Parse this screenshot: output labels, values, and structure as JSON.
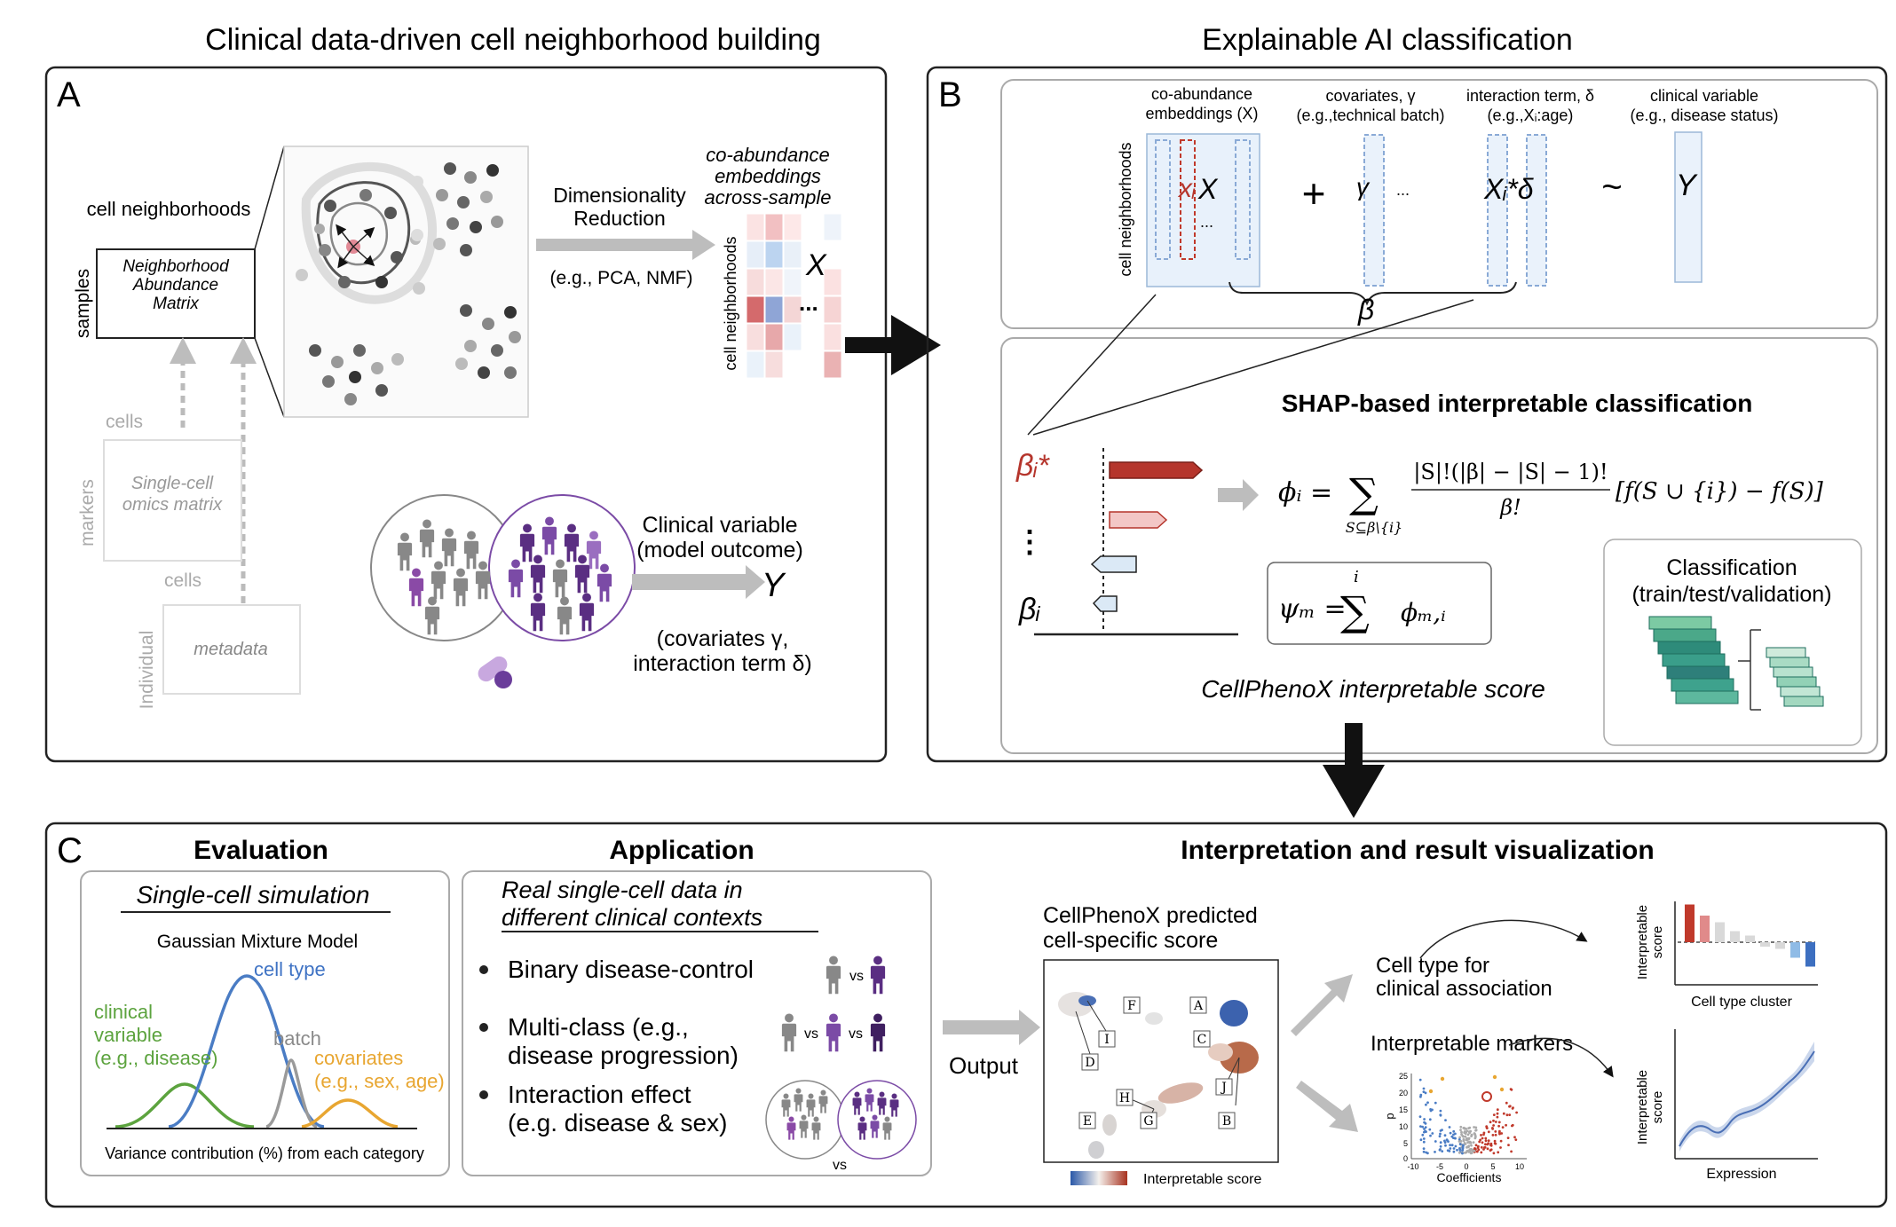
{
  "colors": {
    "panel_border": "#222222",
    "subpanel_border": "#9a9a9a",
    "arrow_gray": "#bdbdbd",
    "red": "#b5352c",
    "pink": "#e8a7a3",
    "blue_light": "#cfe3f5",
    "blue": "#4a7cc4",
    "purple": "#6a3d9a",
    "green": "#5ca33e",
    "orange": "#e8a631",
    "gray_curve": "#9a9a9a"
  },
  "titles": {
    "left": "Clinical data-driven cell neighborhood building",
    "right": "Explainable AI classification"
  },
  "panel_a": {
    "letter": "A",
    "cell_neighborhoods": "cell neighborhoods",
    "samples": "samples",
    "matrix": [
      "Neighborhood",
      "Abundance",
      "Matrix"
    ],
    "dim_red": [
      "Dimensionality",
      "Reduction"
    ],
    "eg": "(e.g., PCA, NMF)",
    "embeddings": [
      "co-abundance",
      "embeddings",
      "across-sample"
    ],
    "cell_neighborhoods_vert": "cell neighborhoods",
    "x_label": "X",
    "dots": "...",
    "cells_top": "cells",
    "markers": "markers",
    "single_cell": [
      "Single-cell",
      "omics matrix"
    ],
    "cells_bottom": "cells",
    "individual": "Individual",
    "metadata": "metadata",
    "clinical_var": [
      "Clinical variable",
      "(model outcome)"
    ],
    "y_label": "Y",
    "covariates": [
      "(covariates γ,",
      "interaction term δ)"
    ]
  },
  "panel_b": {
    "letter": "B",
    "headers": {
      "coab": [
        "co-abundance",
        "embeddings (X)"
      ],
      "cov": [
        "covariates, γ",
        "(e.g.,technical batch)"
      ],
      "inter": [
        "interaction term, δ",
        "(e.g.,Xᵢ:age)"
      ],
      "clin": [
        "clinical variable",
        "(e.g., disease status)"
      ]
    },
    "cell_neighborhoods": "cell neighborhoods",
    "xi": "xᵢ",
    "x": "X",
    "dots": "...",
    "plus": "+",
    "gamma": "γ",
    "gamma_dots": "...",
    "xi_delta": "Xᵢ*δ",
    "tilde": "~",
    "y": "Y",
    "beta": "β",
    "shap_title": "SHAP-based interpretable classification",
    "beta_star": "βᵢ*",
    "beta_i": "βᵢ",
    "vdots": "⋮",
    "phi_lhs": "ϕᵢ =",
    "sum": "∑",
    "sum_sub": "S⊆β\\{i}",
    "frac_num": "|S|!(|β| − |S| − 1)!",
    "frac_den": "β!",
    "bracket": "[f(S ∪ {i}) − f(S)]",
    "psi_lhs": "ψₘ =",
    "psi_sup": "i",
    "psi_rhs": "ϕₘ,ᵢ",
    "classification": [
      "Classification",
      "(train/test/validation)"
    ],
    "score_label": "CellPhenoX interpretable score"
  },
  "panel_c": {
    "letter": "C",
    "evaluation": "Evaluation",
    "sim_title": "Single-cell simulation",
    "gmm": "Gaussian Mixture Model",
    "cell_type": "cell type",
    "clinical": [
      "clinical",
      "variable",
      "(e.g., disease)"
    ],
    "batch": "batch",
    "cov": [
      "covariates",
      "(e.g., sex, age)"
    ],
    "variance": "Variance contribution (%) from each category",
    "application": "Application",
    "real_data": [
      "Real single-cell data in",
      "different clinical contexts"
    ],
    "bullets": [
      {
        "text": [
          "Binary disease-control"
        ]
      },
      {
        "text": [
          "Multi-class (e.g.,",
          "disease progression)"
        ]
      },
      {
        "text": [
          "Interaction effect",
          "(e.g. disease & sex)"
        ]
      }
    ],
    "vs": "vs",
    "output": "Output",
    "interp_title": "Interpretation and result visualization",
    "predicted": [
      "CellPhenoX predicted",
      "cell-specific score"
    ],
    "umap_labels": [
      "F",
      "A",
      "I",
      "C",
      "D",
      "J",
      "H",
      "E",
      "G",
      "B"
    ],
    "colorbar": "Interpretable score",
    "cell_type_clin": [
      "Cell type for",
      "clinical association"
    ],
    "interp_markers": "Interpretable markers",
    "bar_y": [
      "Interpretable",
      "score"
    ],
    "bar_x": "Cell type cluster",
    "bar_values": [
      0.85,
      0.6,
      0.45,
      0.25,
      0.15,
      -0.1,
      -0.15,
      -0.35,
      -0.55
    ],
    "line_y": [
      "Interpretable",
      "score"
    ],
    "line_x": "Expression",
    "volcano_y": "p",
    "volcano_x": "Coefficients",
    "volcano_yticks": [
      "25",
      "20",
      "15",
      "10",
      "5",
      "0"
    ],
    "volcano_xticks": [
      "-10",
      "-5",
      "0",
      "5",
      "10"
    ]
  }
}
